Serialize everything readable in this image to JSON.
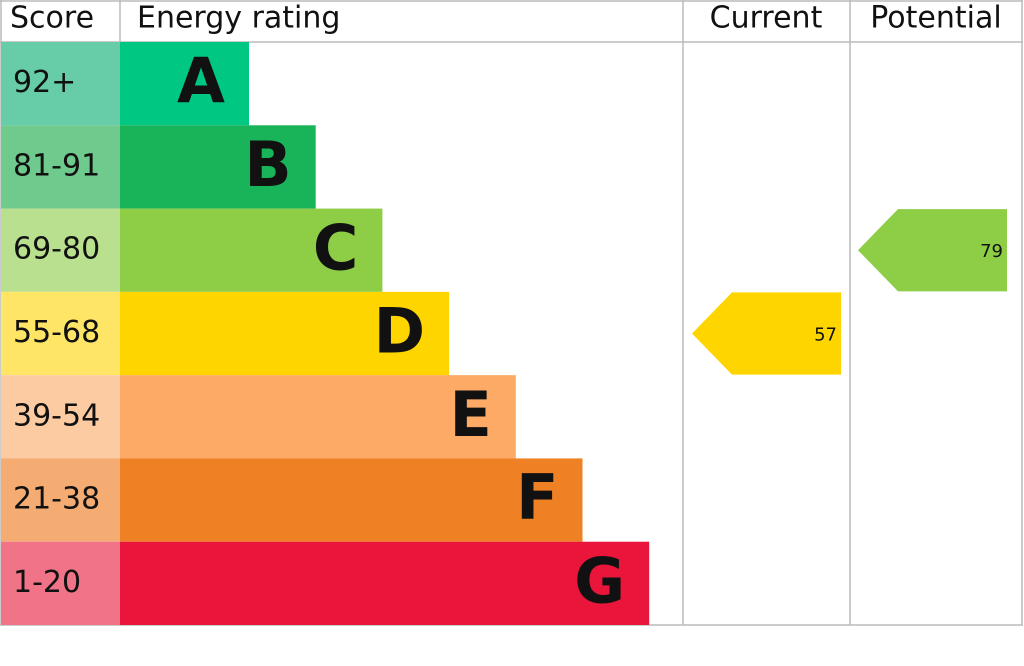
{
  "chart_data": {
    "type": "epc",
    "headers": {
      "score": "Score",
      "rating": "Energy rating",
      "current": "Current",
      "potential": "Potential"
    },
    "bands": [
      {
        "score": "92+",
        "letter": "A",
        "color": "#00c781",
        "score_color": "#66cda8"
      },
      {
        "score": "81-91",
        "letter": "B",
        "color": "#19b459",
        "score_color": "#6fca8e"
      },
      {
        "score": "69-80",
        "letter": "C",
        "color": "#8dce46",
        "score_color": "#b9e08f"
      },
      {
        "score": "55-68",
        "letter": "D",
        "color": "#ffd500",
        "score_color": "#ffe566"
      },
      {
        "score": "39-54",
        "letter": "E",
        "color": "#fcaa65",
        "score_color": "#fdcba2"
      },
      {
        "score": "21-38",
        "letter": "F",
        "color": "#ef8023",
        "score_color": "#f4ac73"
      },
      {
        "score": "1-20",
        "letter": "G",
        "color": "#e9153b",
        "score_color": "#f07388"
      }
    ],
    "current": {
      "value": 57,
      "color": "#ffd500"
    },
    "potential": {
      "value": 79,
      "color": "#8dce46"
    }
  }
}
